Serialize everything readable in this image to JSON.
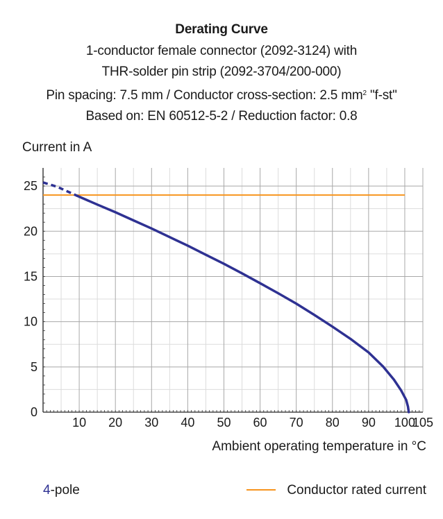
{
  "chart_data": {
    "type": "line",
    "title": "Derating Curve",
    "subtitle_lines": [
      "1-conductor female connector (2092-3124) with",
      "THR-solder pin strip (2092-3704/200-000)",
      "Pin spacing: 7.5 mm / Conductor cross-section: 2.5 mm",
      "Based on: EN 60512-5-2 / Reduction factor: 0.8"
    ],
    "subtitle_line3_superscript": "2",
    "subtitle_line3_suffix": " \"f-st\"",
    "ylabel": "Current in A",
    "xlabel": "Ambient operating temperature in °C",
    "xlim": [
      0,
      105
    ],
    "ylim": [
      0,
      27
    ],
    "x_ticks": [
      10,
      20,
      30,
      40,
      50,
      60,
      70,
      80,
      90,
      100,
      105
    ],
    "y_ticks": [
      0,
      5,
      10,
      15,
      20,
      25
    ],
    "grid": true,
    "series": [
      {
        "name": "4-pole",
        "color": "#2e3192",
        "dashed_segment": {
          "x": [
            0,
            4,
            9.5
          ],
          "y": [
            25.4,
            24.9,
            23.9
          ]
        },
        "x": [
          9.5,
          15,
          20,
          25,
          30,
          35,
          40,
          45,
          50,
          55,
          60,
          65,
          70,
          75,
          80,
          85,
          90,
          94,
          97,
          99,
          100.4,
          100.9,
          101.1
        ],
        "y": [
          23.9,
          22.95,
          22.1,
          21.2,
          20.3,
          19.35,
          18.4,
          17.4,
          16.4,
          15.35,
          14.25,
          13.15,
          12.0,
          10.75,
          9.45,
          8.1,
          6.6,
          5.05,
          3.6,
          2.4,
          1.35,
          0.6,
          0
        ]
      },
      {
        "name": "Conductor rated current",
        "color": "#f7941d",
        "x": [
          0,
          100
        ],
        "y": [
          24,
          24
        ]
      }
    ],
    "legend": [
      {
        "prefix": "4",
        "text": "-pole"
      },
      {
        "text": "Conductor rated current"
      }
    ]
  }
}
